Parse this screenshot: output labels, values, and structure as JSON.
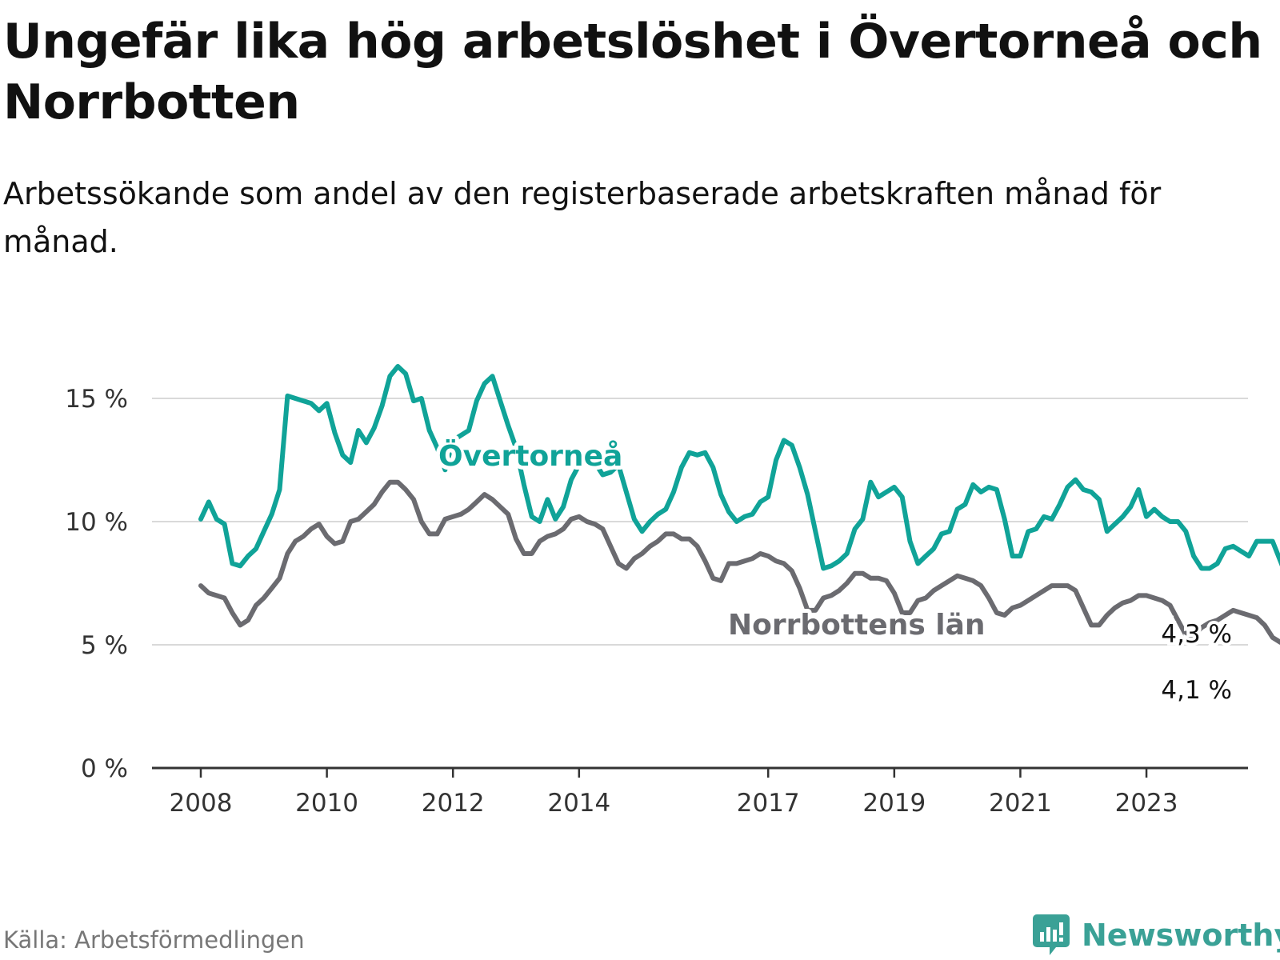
{
  "title": "Ungefär lika hög arbetslöshet i Övertorneå och Norrbotten",
  "subtitle": "Arbetssökande som andel av den registerbaserade arbetskraften månad för månad.",
  "source": "Källa: Arbetsförmedlingen",
  "brand": {
    "name": "Newsworthy",
    "icon": "newsworthy-logo-icon",
    "color": "#3aa196"
  },
  "chart_data": {
    "type": "line",
    "title": "Ungefär lika hög arbetslöshet i Övertorneå och Norrbotten",
    "subtitle": "Arbetssökande som andel av den registerbaserade arbetskraften månad för månad.",
    "xlabel": "",
    "ylabel": "",
    "x_start": 2008,
    "x_step": 0.125,
    "xlim": [
      2008,
      2023.875
    ],
    "ylim": [
      0,
      15
    ],
    "y_ticks": [
      0,
      5,
      10,
      15
    ],
    "y_tick_labels": [
      "0 %",
      "5 %",
      "10 %",
      "15 %"
    ],
    "x_ticks": [
      2008,
      2010,
      2012,
      2014,
      2017,
      2019,
      2021,
      2023
    ],
    "x_tick_labels": [
      "2008",
      "2010",
      "2012",
      "2014",
      "2017",
      "2019",
      "2021",
      "2023"
    ],
    "grid": true,
    "legend": "inline labels",
    "series": [
      {
        "name": "Övertorneå",
        "color": "#10a398",
        "label": "Övertorneå",
        "end_label": "4,3 %",
        "values": [
          10.1,
          10.8,
          10.1,
          9.9,
          8.3,
          8.2,
          8.6,
          8.9,
          9.6,
          10.3,
          11.3,
          15.1,
          15.0,
          14.9,
          14.8,
          14.5,
          14.8,
          13.6,
          12.7,
          12.4,
          13.7,
          13.2,
          13.8,
          14.7,
          15.9,
          16.3,
          16.0,
          14.9,
          15.0,
          13.7,
          13.0,
          12.1,
          13.3,
          13.5,
          13.7,
          14.9,
          15.6,
          15.9,
          14.9,
          13.9,
          13.0,
          11.5,
          10.2,
          10.0,
          10.9,
          10.1,
          10.6,
          11.7,
          12.3,
          12.8,
          12.4,
          11.9,
          12.0,
          12.3,
          11.2,
          10.1,
          9.6,
          10.0,
          10.3,
          10.5,
          11.2,
          12.2,
          12.8,
          12.7,
          12.8,
          12.2,
          11.1,
          10.4,
          10.0,
          10.2,
          10.3,
          10.8,
          11.0,
          12.5,
          13.3,
          13.1,
          12.2,
          11.1,
          9.6,
          8.1,
          8.2,
          8.4,
          8.7,
          9.7,
          10.1,
          11.6,
          11.0,
          11.2,
          11.4,
          11.0,
          9.2,
          8.3,
          8.6,
          8.9,
          9.5,
          9.6,
          10.5,
          10.7,
          11.5,
          11.2,
          11.4,
          11.3,
          10.1,
          8.6,
          8.6,
          9.6,
          9.7,
          10.2,
          10.1,
          10.7,
          11.4,
          11.7,
          11.3,
          11.2,
          10.9,
          9.6,
          9.9,
          10.2,
          10.6,
          11.3,
          10.2,
          10.5,
          10.2,
          10.0,
          10.0,
          9.6,
          8.6,
          8.1,
          8.1,
          8.3,
          8.9,
          9.0,
          8.8,
          8.6,
          9.2,
          9.2,
          9.2,
          8.4,
          7.6,
          7.4,
          7.4,
          7.4,
          7.6,
          7.6,
          8.1,
          8.2,
          9.0,
          8.8,
          8.9,
          9.2,
          8.0,
          6.9,
          6.6,
          7.0,
          7.4,
          7.5,
          8.0,
          7.8,
          8.1,
          8.0,
          7.4,
          7.5,
          6.6,
          5.6,
          5.9,
          6.2,
          6.3,
          6.7,
          6.7,
          7.1,
          6.8,
          6.3,
          5.9,
          5.8,
          5.0,
          5.0,
          5.0,
          4.8,
          4.3,
          4.5,
          4.8,
          5.2,
          5.2,
          4.7,
          4.5,
          4.4,
          4.4,
          4.3,
          4.3,
          4.3,
          4.3
        ]
      },
      {
        "name": "Norrbottens län",
        "color": "#6b6b70",
        "label": "Norrbottens län",
        "end_label": "4,1 %",
        "values": [
          7.4,
          7.1,
          7.0,
          6.9,
          6.3,
          5.8,
          6.0,
          6.6,
          6.9,
          7.3,
          7.7,
          8.7,
          9.2,
          9.4,
          9.7,
          9.9,
          9.4,
          9.1,
          9.2,
          10.0,
          10.1,
          10.4,
          10.7,
          11.2,
          11.6,
          11.6,
          11.3,
          10.9,
          10.0,
          9.5,
          9.5,
          10.1,
          10.2,
          10.3,
          10.5,
          10.8,
          11.1,
          10.9,
          10.6,
          10.3,
          9.3,
          8.7,
          8.7,
          9.2,
          9.4,
          9.5,
          9.7,
          10.1,
          10.2,
          10.0,
          9.9,
          9.7,
          9.0,
          8.3,
          8.1,
          8.5,
          8.7,
          9.0,
          9.2,
          9.5,
          9.5,
          9.3,
          9.3,
          9.0,
          8.4,
          7.7,
          7.6,
          8.3,
          8.3,
          8.4,
          8.5,
          8.7,
          8.6,
          8.4,
          8.3,
          8.0,
          7.3,
          6.4,
          6.4,
          6.9,
          7.0,
          7.2,
          7.5,
          7.9,
          7.9,
          7.7,
          7.7,
          7.6,
          7.1,
          6.3,
          6.3,
          6.8,
          6.9,
          7.2,
          7.4,
          7.6,
          7.8,
          7.7,
          7.6,
          7.4,
          6.9,
          6.3,
          6.2,
          6.5,
          6.6,
          6.8,
          7.0,
          7.2,
          7.4,
          7.4,
          7.4,
          7.2,
          6.5,
          5.8,
          5.8,
          6.2,
          6.5,
          6.7,
          6.8,
          7.0,
          7.0,
          6.9,
          6.8,
          6.6,
          6.0,
          5.4,
          5.4,
          5.7,
          5.9,
          6.0,
          6.2,
          6.4,
          6.3,
          6.2,
          6.1,
          5.8,
          5.3,
          5.1,
          5.2,
          5.4,
          5.6,
          5.8,
          6.0,
          6.2,
          6.3,
          6.4,
          6.4,
          6.2,
          6.7,
          6.8,
          6.7,
          6.7,
          6.8,
          6.8,
          6.7,
          6.9,
          6.9,
          6.7,
          6.5,
          6.1,
          5.6,
          5.6,
          5.6,
          5.6,
          5.5,
          5.6,
          5.6,
          5.6,
          5.5,
          5.3,
          5.2,
          5.0,
          4.6,
          4.5,
          4.6,
          4.7,
          4.6,
          4.6,
          4.6,
          4.6,
          4.6,
          4.6,
          4.5,
          4.3,
          4.2,
          4.0,
          4.0,
          4.1,
          4.1
        ]
      }
    ]
  }
}
